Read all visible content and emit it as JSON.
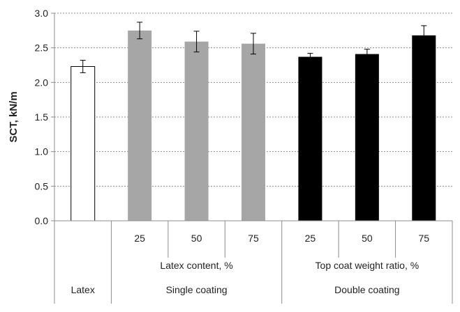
{
  "chart_data": {
    "type": "bar",
    "ylabel": "SCT, kN/m",
    "ylim": [
      0,
      3.0
    ],
    "yticks": [
      "0.0",
      "0.5",
      "1.0",
      "1.5",
      "2.0",
      "2.5",
      "3.0"
    ],
    "ytick_values": [
      0,
      0.5,
      1.0,
      1.5,
      2.0,
      2.5,
      3.0
    ],
    "grid": "horizontal dotted",
    "bars": [
      {
        "group": "Latex",
        "label": "",
        "value": 2.23,
        "error": 0.09,
        "color": "#ffffff"
      },
      {
        "group": "Single coating",
        "label": "25",
        "value": 2.75,
        "error": 0.12,
        "color": "#a6a6a6"
      },
      {
        "group": "Single coating",
        "label": "50",
        "value": 2.59,
        "error": 0.15,
        "color": "#a6a6a6"
      },
      {
        "group": "Single coating",
        "label": "75",
        "value": 2.56,
        "error": 0.15,
        "color": "#a6a6a6"
      },
      {
        "group": "Double coating",
        "label": "25",
        "value": 2.37,
        "error": 0.05,
        "color": "#000000"
      },
      {
        "group": "Double coating",
        "label": "50",
        "value": 2.41,
        "error": 0.07,
        "color": "#000000"
      },
      {
        "group": "Double coating",
        "label": "75",
        "value": 2.68,
        "error": 0.14,
        "color": "#000000"
      }
    ],
    "subgroup_labels": [
      {
        "text": "Latex content, %",
        "group": "Single coating"
      },
      {
        "text": "Top coat weight ratio, %",
        "group": "Double coating"
      }
    ],
    "group_labels": [
      "Latex",
      "Single coating",
      "Double coating"
    ]
  }
}
